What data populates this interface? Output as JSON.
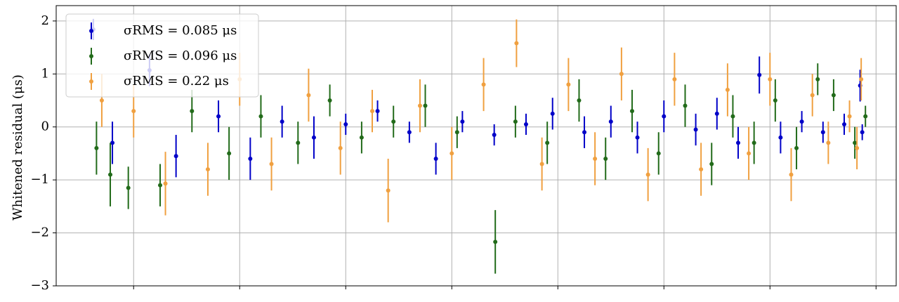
{
  "chart_data": {
    "type": "errorbar",
    "ylabel": "Whitened residual (μs)",
    "xlim": [
      0.27,
      8.19
    ],
    "xticks": [
      1,
      2,
      3,
      4,
      5,
      6,
      7,
      8
    ],
    "ylim": [
      -3,
      2.29
    ],
    "yticks": [
      {
        "value": -3,
        "label": "−3"
      },
      {
        "value": -2,
        "label": "−2"
      },
      {
        "value": -1,
        "label": "−1"
      },
      0,
      1,
      2
    ],
    "grid": true,
    "legend": "upper left",
    "series": [
      {
        "name": "σRMS = 0.085 μs",
        "color": "#0000c8",
        "x": [
          0.62,
          0.8,
          1.15,
          1.4,
          1.8,
          2.1,
          2.4,
          2.7,
          3.0,
          3.3,
          3.6,
          3.85,
          4.1,
          4.4,
          4.7,
          4.95,
          5.25,
          5.5,
          5.75,
          6.0,
          6.3,
          6.5,
          6.7,
          6.9,
          7.1,
          7.3,
          7.5,
          7.7,
          7.85,
          7.87
        ],
        "values": [
          1.84,
          -0.3,
          1.07,
          -0.55,
          0.2,
          -0.6,
          0.1,
          -0.2,
          0.05,
          0.3,
          -0.1,
          -0.6,
          0.1,
          -0.15,
          0.05,
          0.25,
          -0.1,
          0.1,
          -0.2,
          0.2,
          -0.05,
          0.25,
          -0.3,
          0.98,
          -0.2,
          0.1,
          -0.1,
          0.05,
          0.78,
          -0.1
        ],
        "errors": [
          0.2,
          0.4,
          0.3,
          0.4,
          0.3,
          0.4,
          0.3,
          0.4,
          0.2,
          0.2,
          0.2,
          0.3,
          0.2,
          0.2,
          0.2,
          0.3,
          0.3,
          0.3,
          0.3,
          0.3,
          0.3,
          0.3,
          0.3,
          0.35,
          0.3,
          0.2,
          0.2,
          0.2,
          0.3,
          0.15
        ]
      },
      {
        "name": "σRMS = 0.096 μs",
        "color": "#226b1a",
        "x": [
          0.65,
          0.78,
          0.95,
          1.25,
          1.55,
          1.9,
          2.2,
          2.55,
          2.85,
          3.15,
          3.45,
          3.75,
          4.05,
          4.41,
          4.6,
          4.9,
          5.2,
          5.45,
          5.7,
          5.95,
          6.2,
          6.45,
          6.65,
          6.85,
          7.05,
          7.25,
          7.45,
          7.6,
          7.8,
          7.9
        ],
        "values": [
          -0.4,
          -0.9,
          -1.15,
          -1.1,
          0.3,
          -0.5,
          0.2,
          -0.3,
          0.5,
          -0.2,
          0.1,
          0.4,
          -0.1,
          -2.17,
          0.1,
          -0.3,
          0.5,
          -0.6,
          0.3,
          -0.5,
          0.4,
          -0.7,
          0.2,
          -0.3,
          0.5,
          -0.4,
          0.9,
          0.6,
          -0.3,
          0.2
        ],
        "errors": [
          0.5,
          0.6,
          0.4,
          0.4,
          0.4,
          0.5,
          0.4,
          0.4,
          0.3,
          0.3,
          0.3,
          0.4,
          0.3,
          0.6,
          0.3,
          0.4,
          0.4,
          0.4,
          0.4,
          0.4,
          0.4,
          0.4,
          0.4,
          0.4,
          0.4,
          0.4,
          0.3,
          0.3,
          0.3,
          0.2
        ]
      },
      {
        "name": "σRMS = 0.22 μs",
        "color": "#f0a040",
        "x": [
          0.7,
          1.0,
          1.3,
          1.7,
          2.0,
          2.3,
          2.65,
          2.95,
          3.25,
          3.4,
          3.7,
          4.0,
          4.3,
          4.61,
          4.85,
          5.1,
          5.35,
          5.6,
          5.85,
          6.1,
          6.35,
          6.6,
          6.8,
          7.0,
          7.2,
          7.4,
          7.55,
          7.75,
          7.82,
          7.86
        ],
        "values": [
          0.5,
          0.3,
          -1.07,
          -0.8,
          0.9,
          -0.7,
          0.6,
          -0.4,
          0.3,
          -1.2,
          0.4,
          -0.5,
          0.8,
          1.58,
          -0.7,
          0.8,
          -0.6,
          1.0,
          -0.9,
          0.9,
          -0.8,
          0.7,
          -0.5,
          0.9,
          -0.9,
          0.6,
          -0.3,
          0.2,
          -0.4,
          0.9
        ],
        "errors": [
          0.5,
          0.5,
          0.6,
          0.5,
          0.5,
          0.5,
          0.5,
          0.5,
          0.4,
          0.6,
          0.5,
          0.5,
          0.5,
          0.45,
          0.5,
          0.5,
          0.5,
          0.5,
          0.5,
          0.5,
          0.5,
          0.5,
          0.5,
          0.5,
          0.5,
          0.4,
          0.4,
          0.3,
          0.4,
          0.4
        ]
      }
    ]
  }
}
